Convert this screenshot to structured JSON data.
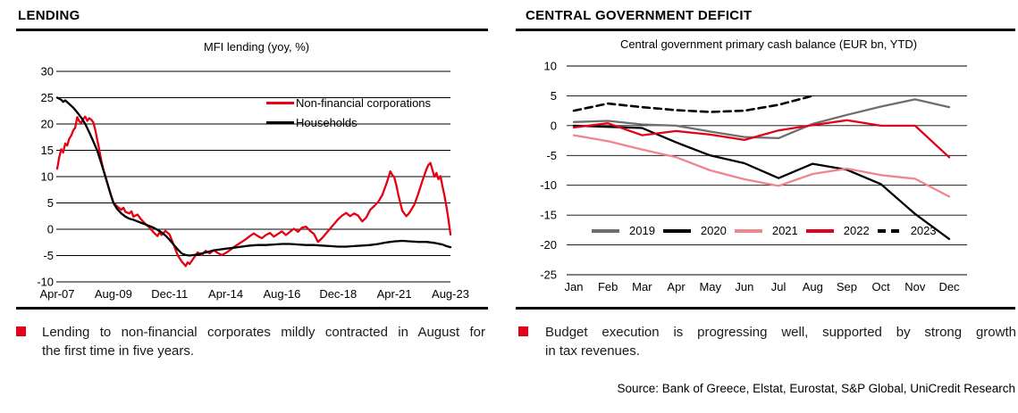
{
  "panels": {
    "lending": {
      "header": "LENDING",
      "bullet_lines": [
        "Lending to non-financial corporates mildly contracted in August for",
        "the first time in five years."
      ]
    },
    "deficit": {
      "header": "CENTRAL GOVERNMENT DEFICIT",
      "bullet_lines": [
        "Budget execution is progressing well, supported by strong growth",
        "in tax revenues."
      ],
      "source": "Source: Bank of Greece, Elstat, Eurostat, S&P Global, UniCredit Research"
    }
  },
  "colors": {
    "bullet_marker": "#e2001a",
    "rule": "#000000"
  },
  "chart_data": [
    {
      "id": "mfi-lending",
      "type": "line",
      "title": "MFI lending (yoy, %)",
      "x_axis": {
        "unit": "months since Apr-07",
        "range": [
          0,
          196
        ],
        "tick_positions": [
          0,
          28,
          56,
          84,
          112,
          140,
          168,
          196
        ],
        "tick_labels": [
          "Apr-07",
          "Aug-09",
          "Dec-11",
          "Apr-14",
          "Aug-16",
          "Dec-18",
          "Apr-21",
          "Aug-23"
        ]
      },
      "y_axis": {
        "range": [
          -10,
          30
        ],
        "step": 5,
        "ticks": [
          30,
          25,
          20,
          15,
          10,
          5,
          0,
          -5,
          -10
        ]
      },
      "grid": "horizontal",
      "legend_position": "inside-top-right",
      "series": [
        {
          "name": "Non-financial corporations",
          "color": "#e60012",
          "points": [
            [
              0,
              11.5
            ],
            [
              1,
              13.6
            ],
            [
              2,
              15.2
            ],
            [
              3,
              14.6
            ],
            [
              4,
              16.3
            ],
            [
              5,
              15.9
            ],
            [
              6,
              17.2
            ],
            [
              7,
              17.8
            ],
            [
              8,
              18.8
            ],
            [
              9,
              19.3
            ],
            [
              10,
              21.3
            ],
            [
              11,
              20.5
            ],
            [
              12,
              20.2
            ],
            [
              13,
              21.0
            ],
            [
              14,
              21.4
            ],
            [
              15,
              20.6
            ],
            [
              16,
              21.1
            ],
            [
              17,
              20.8
            ],
            [
              18,
              20.3
            ],
            [
              19,
              18.8
            ],
            [
              20,
              16.9
            ],
            [
              21,
              15.1
            ],
            [
              22,
              13.0
            ],
            [
              23,
              11.4
            ],
            [
              24,
              10.1
            ],
            [
              25,
              8.8
            ],
            [
              26,
              7.5
            ],
            [
              27,
              6.2
            ],
            [
              28,
              5.1
            ],
            [
              30,
              4.3
            ],
            [
              32,
              3.7
            ],
            [
              33,
              4.1
            ],
            [
              34,
              3.3
            ],
            [
              36,
              3.0
            ],
            [
              37,
              3.4
            ],
            [
              38,
              2.4
            ],
            [
              40,
              2.8
            ],
            [
              42,
              1.8
            ],
            [
              44,
              1.0
            ],
            [
              46,
              0.3
            ],
            [
              48,
              -0.6
            ],
            [
              50,
              -1.3
            ],
            [
              51,
              -0.6
            ],
            [
              52,
              -1.1
            ],
            [
              54,
              -0.3
            ],
            [
              56,
              -1.0
            ],
            [
              58,
              -2.9
            ],
            [
              60,
              -4.9
            ],
            [
              62,
              -6.1
            ],
            [
              64,
              -7.0
            ],
            [
              65,
              -6.3
            ],
            [
              66,
              -6.6
            ],
            [
              68,
              -5.5
            ],
            [
              70,
              -4.4
            ],
            [
              72,
              -4.9
            ],
            [
              74,
              -4.1
            ],
            [
              76,
              -4.6
            ],
            [
              78,
              -4.0
            ],
            [
              80,
              -4.5
            ],
            [
              82,
              -4.9
            ],
            [
              84,
              -4.5
            ],
            [
              86,
              -4.0
            ],
            [
              88,
              -3.4
            ],
            [
              90,
              -2.9
            ],
            [
              92,
              -2.4
            ],
            [
              94,
              -1.9
            ],
            [
              96,
              -1.3
            ],
            [
              98,
              -0.8
            ],
            [
              100,
              -1.3
            ],
            [
              102,
              -1.7
            ],
            [
              104,
              -1.1
            ],
            [
              106,
              -0.7
            ],
            [
              108,
              -1.4
            ],
            [
              110,
              -0.9
            ],
            [
              112,
              -0.4
            ],
            [
              114,
              -1.1
            ],
            [
              116,
              -0.5
            ],
            [
              118,
              0.1
            ],
            [
              120,
              -0.5
            ],
            [
              122,
              0.3
            ],
            [
              124,
              0.5
            ],
            [
              126,
              -0.3
            ],
            [
              128,
              -0.9
            ],
            [
              130,
              -2.4
            ],
            [
              132,
              -1.7
            ],
            [
              134,
              -0.8
            ],
            [
              136,
              0.1
            ],
            [
              138,
              1.0
            ],
            [
              140,
              1.9
            ],
            [
              142,
              2.6
            ],
            [
              144,
              3.1
            ],
            [
              146,
              2.5
            ],
            [
              148,
              3.0
            ],
            [
              150,
              2.6
            ],
            [
              152,
              1.5
            ],
            [
              154,
              2.2
            ],
            [
              156,
              3.7
            ],
            [
              158,
              4.4
            ],
            [
              160,
              5.2
            ],
            [
              162,
              6.5
            ],
            [
              164,
              8.6
            ],
            [
              165,
              9.7
            ],
            [
              166,
              11.0
            ],
            [
              167,
              10.3
            ],
            [
              168,
              9.9
            ],
            [
              169,
              8.4
            ],
            [
              170,
              6.6
            ],
            [
              171,
              5.0
            ],
            [
              172,
              3.5
            ],
            [
              174,
              2.5
            ],
            [
              175,
              2.9
            ],
            [
              176,
              3.4
            ],
            [
              178,
              4.7
            ],
            [
              180,
              6.8
            ],
            [
              182,
              9.2
            ],
            [
              184,
              11.4
            ],
            [
              185,
              12.2
            ],
            [
              186,
              12.6
            ],
            [
              187,
              11.3
            ],
            [
              188,
              10.0
            ],
            [
              189,
              10.7
            ],
            [
              190,
              9.5
            ],
            [
              191,
              10.1
            ],
            [
              192,
              8.2
            ],
            [
              193,
              6.4
            ],
            [
              194,
              4.3
            ],
            [
              195,
              1.8
            ],
            [
              196,
              -1.0
            ]
          ]
        },
        {
          "name": "Households",
          "color": "#000000",
          "points": [
            [
              0,
              25.0
            ],
            [
              2,
              24.6
            ],
            [
              3,
              24.2
            ],
            [
              4,
              24.5
            ],
            [
              6,
              23.8
            ],
            [
              8,
              23.1
            ],
            [
              10,
              22.2
            ],
            [
              12,
              21.2
            ],
            [
              14,
              20.0
            ],
            [
              16,
              18.4
            ],
            [
              18,
              16.7
            ],
            [
              20,
              14.9
            ],
            [
              22,
              12.5
            ],
            [
              24,
              10.0
            ],
            [
              26,
              7.4
            ],
            [
              28,
              5.0
            ],
            [
              30,
              3.8
            ],
            [
              32,
              3.0
            ],
            [
              34,
              2.4
            ],
            [
              36,
              2.0
            ],
            [
              38,
              1.8
            ],
            [
              40,
              1.5
            ],
            [
              42,
              1.2
            ],
            [
              44,
              0.9
            ],
            [
              46,
              0.6
            ],
            [
              48,
              0.3
            ],
            [
              50,
              -0.1
            ],
            [
              52,
              -0.6
            ],
            [
              54,
              -1.2
            ],
            [
              56,
              -2.0
            ],
            [
              58,
              -2.9
            ],
            [
              60,
              -3.8
            ],
            [
              62,
              -4.6
            ],
            [
              64,
              -4.9
            ],
            [
              66,
              -5.0
            ],
            [
              68,
              -4.9
            ],
            [
              70,
              -4.8
            ],
            [
              72,
              -4.6
            ],
            [
              74,
              -4.4
            ],
            [
              76,
              -4.2
            ],
            [
              78,
              -4.0
            ],
            [
              80,
              -3.9
            ],
            [
              84,
              -3.7
            ],
            [
              88,
              -3.5
            ],
            [
              92,
              -3.3
            ],
            [
              96,
              -3.1
            ],
            [
              100,
              -3.0
            ],
            [
              104,
              -3.0
            ],
            [
              108,
              -2.9
            ],
            [
              112,
              -2.8
            ],
            [
              116,
              -2.8
            ],
            [
              120,
              -2.9
            ],
            [
              124,
              -3.0
            ],
            [
              128,
              -3.0
            ],
            [
              132,
              -3.1
            ],
            [
              136,
              -3.2
            ],
            [
              140,
              -3.3
            ],
            [
              144,
              -3.3
            ],
            [
              148,
              -3.2
            ],
            [
              152,
              -3.1
            ],
            [
              156,
              -3.0
            ],
            [
              160,
              -2.8
            ],
            [
              164,
              -2.5
            ],
            [
              168,
              -2.3
            ],
            [
              172,
              -2.2
            ],
            [
              176,
              -2.3
            ],
            [
              180,
              -2.4
            ],
            [
              184,
              -2.4
            ],
            [
              188,
              -2.6
            ],
            [
              192,
              -2.9
            ],
            [
              194,
              -3.2
            ],
            [
              196,
              -3.4
            ]
          ]
        }
      ]
    },
    {
      "id": "primary-cash-balance",
      "type": "line",
      "title": "Central government primary cash balance (EUR bn, YTD)",
      "x_axis": {
        "categories": [
          "Jan",
          "Feb",
          "Mar",
          "Apr",
          "May",
          "Jun",
          "Jul",
          "Aug",
          "Sep",
          "Oct",
          "Nov",
          "Dec"
        ]
      },
      "y_axis": {
        "range": [
          -25,
          10
        ],
        "step": 5,
        "ticks": [
          10,
          5,
          0,
          -5,
          -10,
          -15,
          -20,
          -25
        ]
      },
      "grid": "horizontal",
      "legend_position": "inside-bottom-left",
      "series": [
        {
          "name": "2019",
          "color": "#6d6e71",
          "values": [
            0.6,
            0.8,
            0.2,
            0.0,
            -1.0,
            -1.9,
            -2.1,
            0.3,
            1.8,
            3.2,
            4.4,
            3.1
          ]
        },
        {
          "name": "2020",
          "color": "#000000",
          "values": [
            0.0,
            -0.2,
            -0.4,
            -2.8,
            -5.0,
            -6.3,
            -8.8,
            -6.4,
            -7.4,
            -9.8,
            -14.8,
            -19.0
          ]
        },
        {
          "name": "2021",
          "color": "#f0868c",
          "values": [
            -1.6,
            -2.6,
            -4.0,
            -5.3,
            -7.5,
            -9.0,
            -10.1,
            -8.1,
            -7.2,
            -8.3,
            -8.9,
            -11.9
          ]
        },
        {
          "name": "2022",
          "color": "#e2001a",
          "values": [
            -0.3,
            0.4,
            -1.6,
            -0.9,
            -1.5,
            -2.4,
            -0.8,
            0.1,
            0.9,
            0.0,
            0.0,
            -5.3
          ]
        },
        {
          "name": "2023",
          "color": "#000000",
          "dash": [
            8,
            5
          ],
          "values": [
            2.5,
            3.7,
            3.1,
            2.6,
            2.3,
            2.5,
            3.5,
            5.0
          ]
        }
      ]
    }
  ]
}
